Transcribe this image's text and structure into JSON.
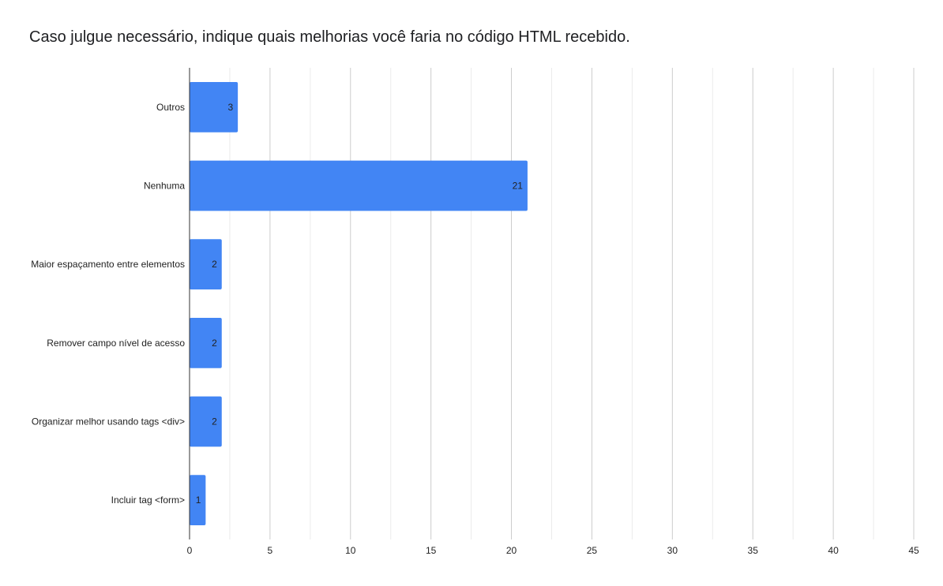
{
  "chart_data": {
    "type": "bar",
    "orientation": "horizontal",
    "title": "Caso julgue necessário, indique quais melhorias você faria no código HTML recebido.",
    "xlabel": "",
    "ylabel": "",
    "categories": [
      "Outros",
      "Nenhuma",
      "Maior espaçamento entre elementos",
      "Remover campo nível de acesso",
      "Organizar melhor usando tags <div>",
      "Incluir tag <form>"
    ],
    "values": [
      3,
      21,
      2,
      2,
      2,
      1
    ],
    "xlim": [
      0,
      45
    ],
    "x_ticks": [
      0,
      5,
      10,
      15,
      20,
      25,
      30,
      35,
      40,
      45
    ],
    "grid": true,
    "legend": "none",
    "bar_color": "#4285f4",
    "show_data_labels": true
  }
}
